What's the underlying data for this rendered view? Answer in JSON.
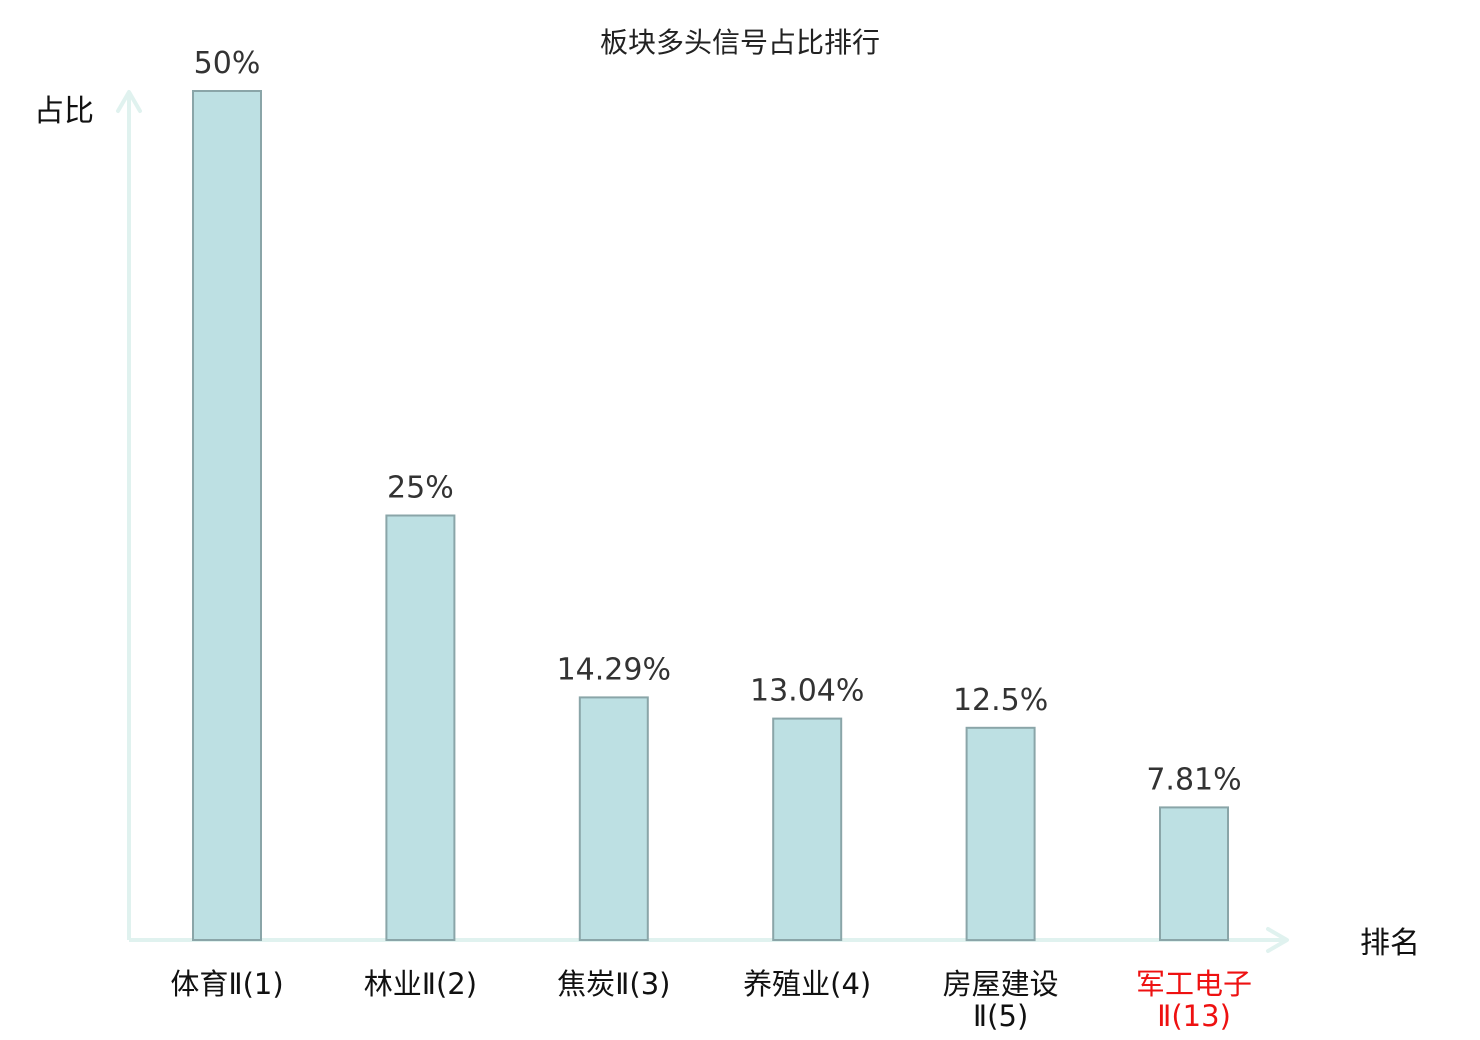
{
  "chart_data": {
    "type": "bar",
    "title": "板块多头信号占比排行",
    "xlabel": "排名",
    "ylabel": "占比",
    "ylim": [
      0,
      50
    ],
    "grid": false,
    "categories": [
      {
        "lines": [
          "体育Ⅱ(1)"
        ],
        "highlight": false
      },
      {
        "lines": [
          "林业Ⅱ(2)"
        ],
        "highlight": false
      },
      {
        "lines": [
          "焦炭Ⅱ(3)"
        ],
        "highlight": false
      },
      {
        "lines": [
          "养殖业(4)"
        ],
        "highlight": false
      },
      {
        "lines": [
          "房屋建设",
          "Ⅱ(5)"
        ],
        "highlight": false
      },
      {
        "lines": [
          "军工电子",
          "Ⅱ(13)"
        ],
        "highlight": true
      }
    ],
    "values": [
      50,
      25,
      14.29,
      13.04,
      12.5,
      7.81
    ],
    "value_labels": [
      "50%",
      "25%",
      "14.29%",
      "13.04%",
      "12.5%",
      "7.81%"
    ],
    "colors": {
      "bar_fill": "#bde0e3",
      "bar_stroke": "#8aa5a8",
      "axis": "#e0f2ef",
      "highlight": "#ee1111"
    }
  }
}
